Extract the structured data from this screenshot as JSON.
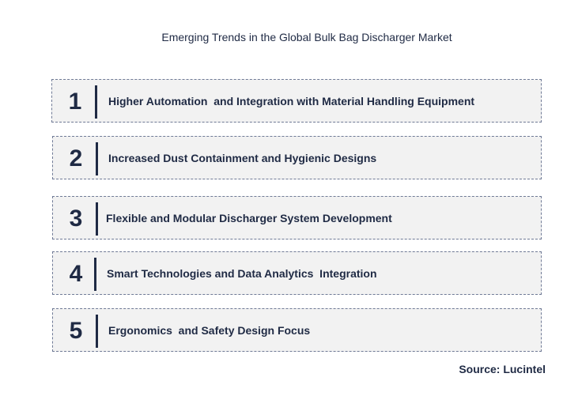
{
  "title": "Emerging Trends in the Global Bulk Bag Discharger Market",
  "trends": [
    {
      "number": "1",
      "label": "Higher Automation  and Integration with Material Handling Equipment"
    },
    {
      "number": "2",
      "label": "Increased Dust Containment and Hygienic Designs"
    },
    {
      "number": "3",
      "label": "Flexible and Modular Discharger System Development"
    },
    {
      "number": "4",
      "label": "Smart Technologies and Data Analytics  Integration"
    },
    {
      "number": "5",
      "label": "Ergonomics  and Safety Design Focus"
    }
  ],
  "source": "Source: Lucintel",
  "colors": {
    "text": "#1f2a44",
    "box_background": "#f2f2f2",
    "box_border": "#6f7a96"
  }
}
